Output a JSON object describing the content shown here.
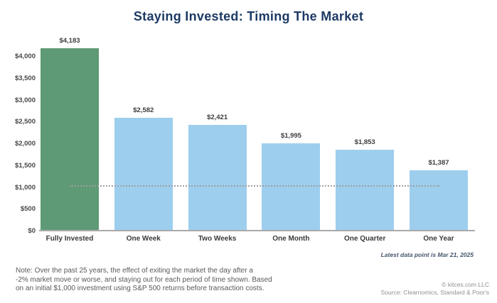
{
  "chart_data": {
    "type": "bar",
    "title": "Staying Invested: Timing The Market",
    "categories": [
      "Fully Invested",
      "One Week",
      "Two Weeks",
      "One Month",
      "One Quarter",
      "One Year"
    ],
    "values": [
      4183,
      2582,
      2421,
      1995,
      1853,
      1387
    ],
    "value_labels": [
      "$4,183",
      "$2,582",
      "$2,421",
      "$1,995",
      "$1,853",
      "$1,387"
    ],
    "bar_colors": [
      "#5e9a75",
      "#9dceee",
      "#9dceee",
      "#9dceee",
      "#9dceee",
      "#9dceee"
    ],
    "xlabel": "",
    "ylabel": "",
    "ylim": [
      0,
      4000
    ],
    "ytick_step": 500,
    "ytick_labels": [
      "$0",
      "$500",
      "$1,000",
      "$1,500",
      "$2,000",
      "$2,500",
      "$3,000",
      "$3,500",
      "$4,000"
    ],
    "reference_line": {
      "value": 1000,
      "style": "dotted",
      "color": "#9f9f9f"
    },
    "grid": false,
    "legend": false
  },
  "footnotes": {
    "latest_data": "Latest data point is Mar 21, 2025",
    "note_line1": "Note: Over the past 25 years, the effect of exiting the market the day after a",
    "note_line2": "-2% market move or worse, and staying out for each period of time shown. Based",
    "note_line3": "on an initial $1,000 investment using S&P 500 returns before transaction costs.",
    "copyright": "© kitces.com LLC",
    "source": "Source: Clearnomics, Standard & Poor's"
  },
  "colors": {
    "title": "#1d3a64",
    "bar_green": "#5e9a75",
    "bar_blue": "#9dceee",
    "axis_line": "#a9a9a9",
    "value_label_text": "#3d3d3d",
    "note_text": "#58595b",
    "latest_note_text": "#44546a",
    "source_text": "#8f9093"
  }
}
